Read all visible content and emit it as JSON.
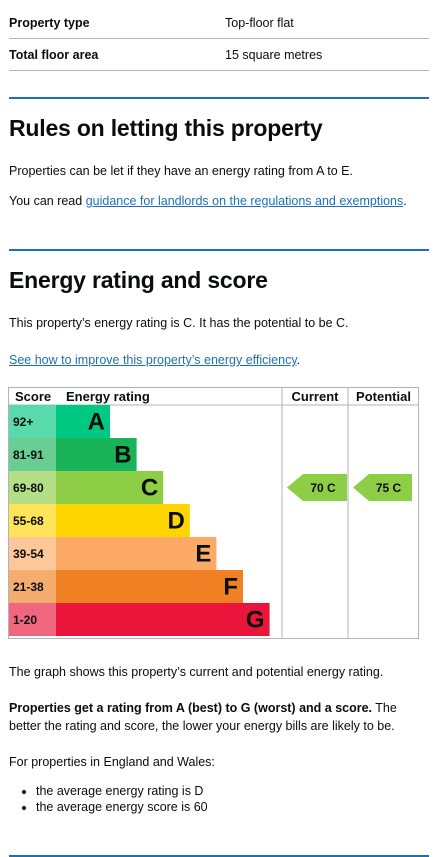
{
  "summary": {
    "rows": [
      {
        "key": "Property type",
        "value": "Top-floor flat"
      },
      {
        "key": "Total floor area",
        "value": "15 square metres"
      }
    ]
  },
  "letting": {
    "heading": "Rules on letting this property",
    "para1": "Properties can be let if they have an energy rating from A to E.",
    "para2_prefix": "You can read ",
    "para2_link": "guidance for landlords on the regulations and exemptions",
    "para2_suffix": "."
  },
  "energy": {
    "heading": "Energy rating and score",
    "rating_text": "This property’s energy rating is C. It has the potential to be C.",
    "improve_link": "See how to improve this property’s energy efficiency",
    "improve_suffix": "."
  },
  "chart_data": {
    "type": "table",
    "headers": {
      "score": "Score",
      "rating": "Energy rating",
      "current": "Current",
      "potential": "Potential"
    },
    "bands": [
      {
        "letter": "A",
        "range": "92+",
        "color": "#00c781"
      },
      {
        "letter": "B",
        "range": "81-91",
        "color": "#19b459"
      },
      {
        "letter": "C",
        "range": "69-80",
        "color": "#8dce46"
      },
      {
        "letter": "D",
        "range": "55-68",
        "color": "#ffd500"
      },
      {
        "letter": "E",
        "range": "39-54",
        "color": "#fcaa65"
      },
      {
        "letter": "F",
        "range": "21-38",
        "color": "#ef8023"
      },
      {
        "letter": "G",
        "range": "1-20",
        "color": "#e9153b"
      }
    ],
    "current": {
      "score": 70,
      "letter": "C",
      "label": "70  C"
    },
    "potential": {
      "score": 75,
      "letter": "C",
      "label": "75  C"
    }
  },
  "explanation": {
    "graph_text": "The graph shows this property’s current and potential energy rating.",
    "bold_text": "Properties get a rating from A (best) to G (worst) and a score.",
    "rest_text": " The better the rating and score, the lower your energy bills are likely to be.",
    "england_text": "For properties in England and Wales:",
    "bullets": [
      "the average energy rating is D",
      "the average energy score is 60"
    ]
  }
}
